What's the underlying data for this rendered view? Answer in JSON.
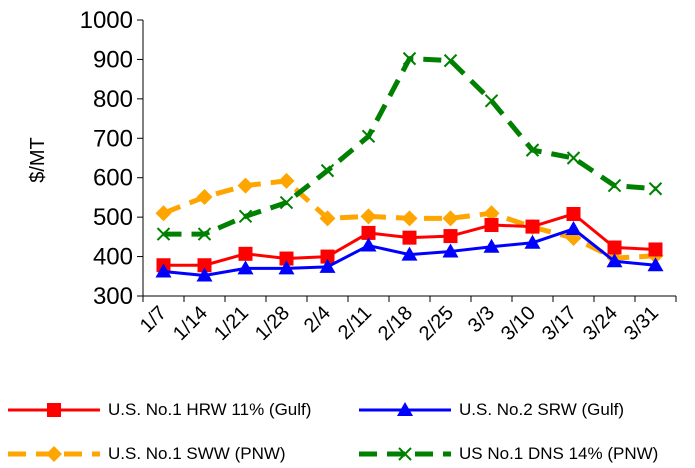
{
  "chart_data": {
    "type": "line",
    "title": "",
    "xlabel": "",
    "ylabel": "$/MT",
    "ylim": [
      300,
      1000
    ],
    "yticks": [
      300,
      400,
      500,
      600,
      700,
      800,
      900,
      1000
    ],
    "grid": false,
    "legend_position": "bottom",
    "categories": [
      "1/7",
      "1/14",
      "1/21",
      "1/28",
      "2/4",
      "2/11",
      "2/18",
      "2/25",
      "3/3",
      "3/10",
      "3/17",
      "3/24",
      "3/31"
    ],
    "series": [
      {
        "name": "U.S. No.1 HRW 11% (Gulf)",
        "color": "#ff0000",
        "style": "solid",
        "marker": "square",
        "values": [
          378,
          378,
          407,
          395,
          400,
          460,
          448,
          452,
          480,
          476,
          508,
          423,
          418
        ]
      },
      {
        "name": "U.S. No.2 SRW (Gulf)",
        "color": "#0000ff",
        "style": "solid",
        "marker": "triangle",
        "values": [
          362,
          352,
          370,
          370,
          374,
          428,
          405,
          413,
          425,
          435,
          470,
          388,
          378
        ]
      },
      {
        "name": "U.S. No.1 SWW (PNW)",
        "color": "#ffa500",
        "style": "dashed",
        "marker": "diamond",
        "values": [
          510,
          551,
          580,
          592,
          497,
          502,
          497,
          497,
          510,
          475,
          447,
          396,
          402
        ]
      },
      {
        "name": "US No.1 DNS 14% (PNW)",
        "color": "#008000",
        "style": "dashed",
        "marker": "x",
        "values": [
          457,
          457,
          502,
          537,
          618,
          705,
          902,
          897,
          795,
          670,
          650,
          580,
          572
        ]
      }
    ]
  }
}
